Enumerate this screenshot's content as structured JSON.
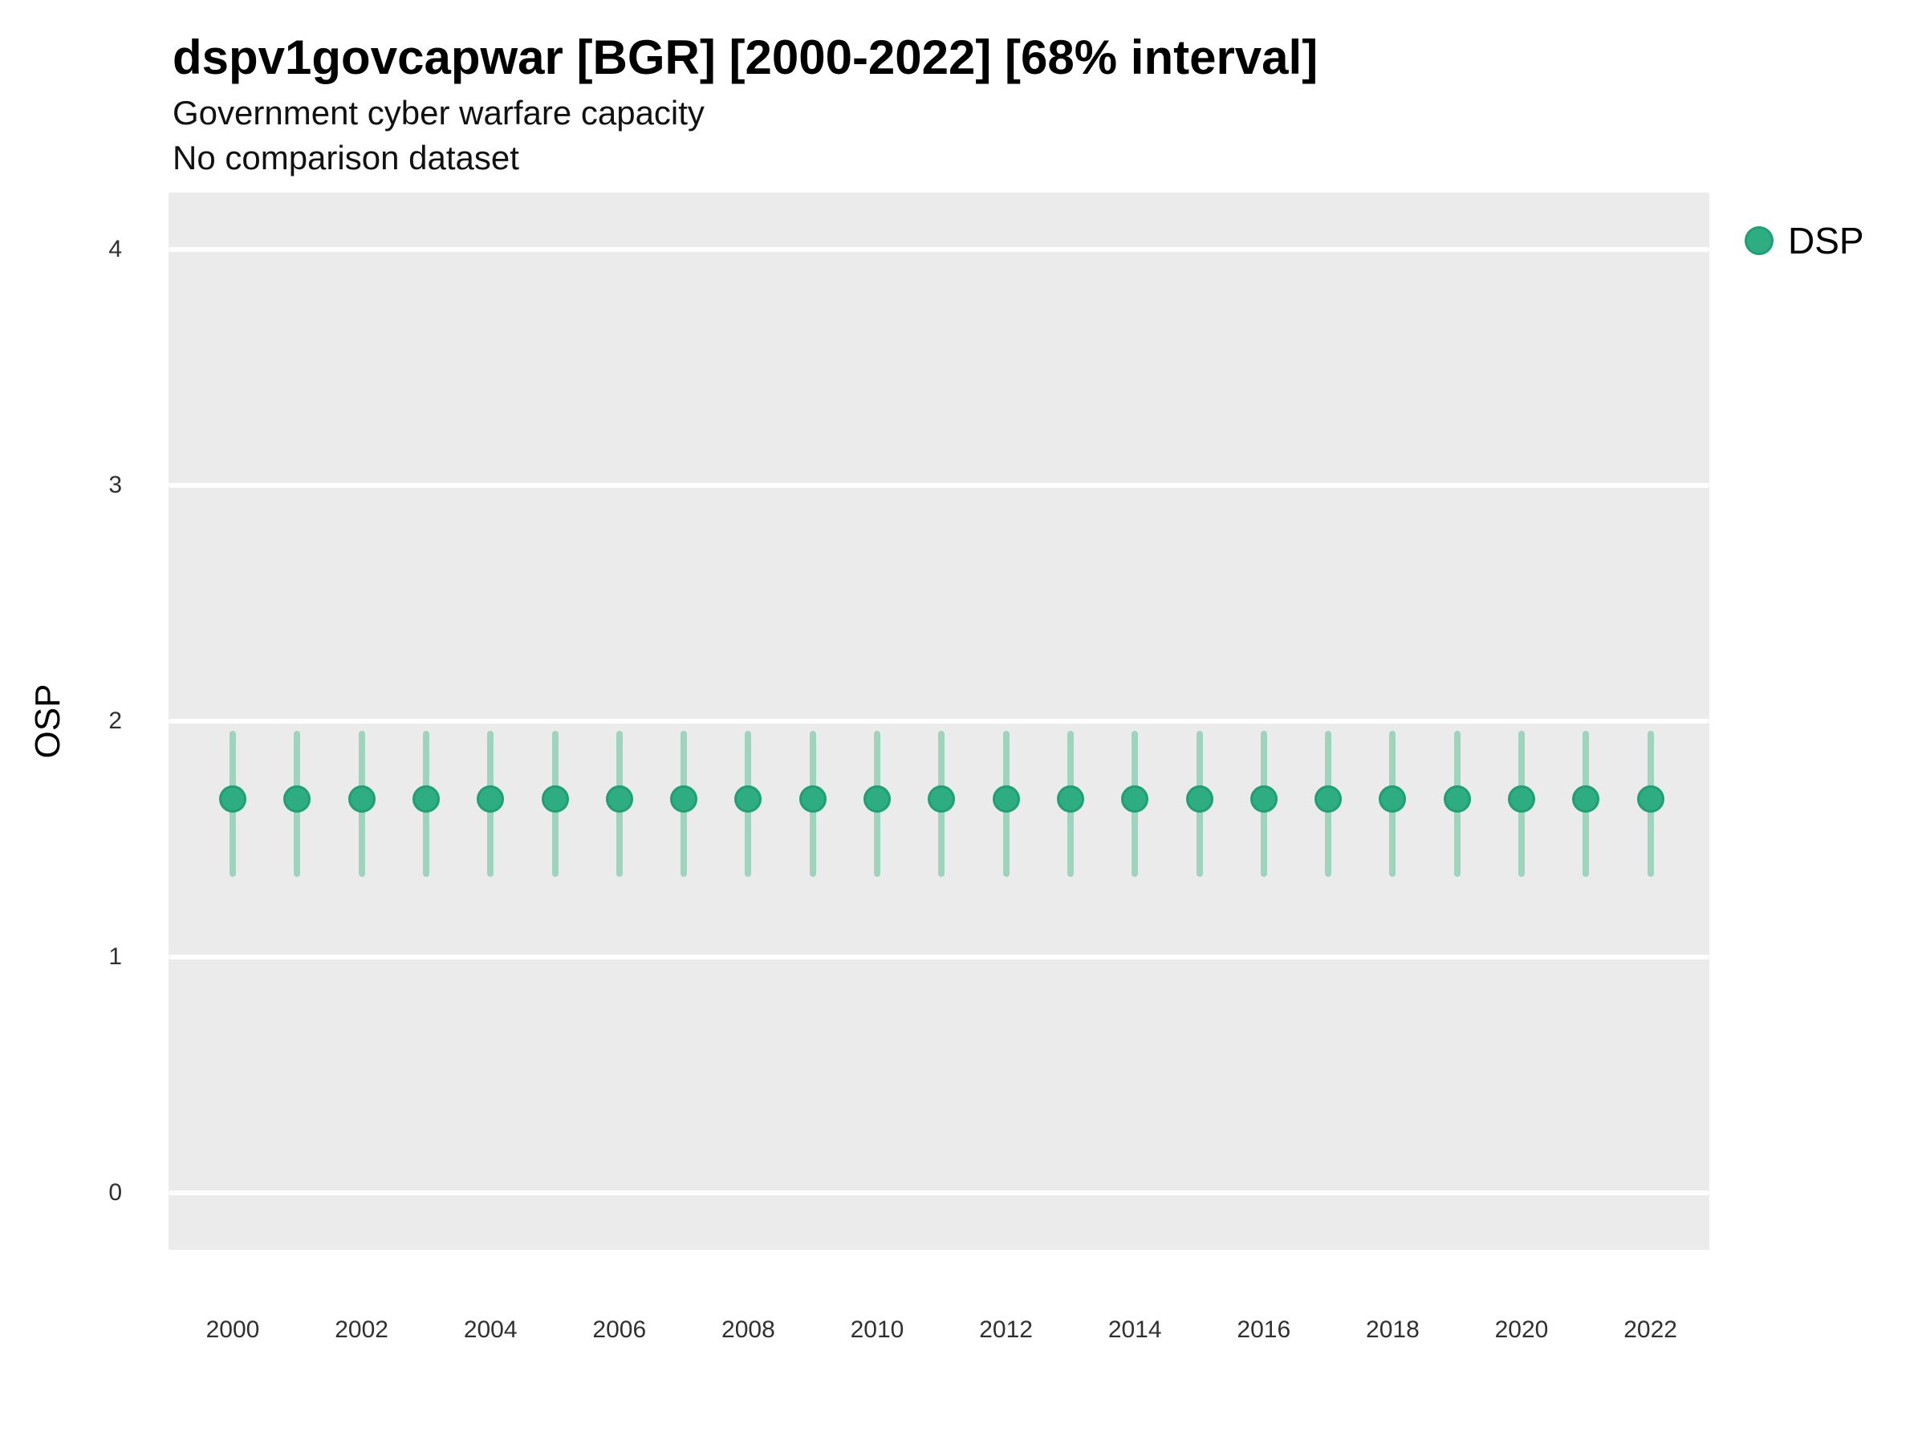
{
  "header": {
    "title": "dspv1govcapwar [BGR] [2000-2022] [68% interval]",
    "subtitle1": "Government cyber warfare capacity",
    "subtitle2": "No comparison dataset"
  },
  "legend": {
    "label": "DSP",
    "position": "right"
  },
  "colors": {
    "point_fill": "#2EAC82",
    "point_stroke": "#1FA073",
    "interval_bar": "#9CD4BE",
    "panel_background": "#EBEBEB",
    "gridline": "#FFFFFF",
    "tick_text": "#303030",
    "text": "#000000"
  },
  "chart_data": {
    "type": "pointrange",
    "title": "dspv1govcapwar [BGR] [2000-2022] [68% interval]",
    "subtitle": "Government cyber warfare capacity",
    "note": "No comparison dataset",
    "xlabel": "",
    "ylabel": "OSP",
    "ylim": [
      -0.24,
      4.24
    ],
    "yticks": [
      0,
      1,
      2,
      3,
      4
    ],
    "xticks": [
      2000,
      2002,
      2004,
      2006,
      2008,
      2010,
      2012,
      2014,
      2016,
      2018,
      2020,
      2022
    ],
    "grid": "horizontal-major-only",
    "legend_position": "right",
    "interval_level": "68%",
    "series": [
      {
        "name": "DSP",
        "points": [
          {
            "year": 2000,
            "est": 1.67,
            "lo": 1.34,
            "hi": 1.96
          },
          {
            "year": 2001,
            "est": 1.67,
            "lo": 1.34,
            "hi": 1.96
          },
          {
            "year": 2002,
            "est": 1.67,
            "lo": 1.34,
            "hi": 1.96
          },
          {
            "year": 2003,
            "est": 1.67,
            "lo": 1.34,
            "hi": 1.96
          },
          {
            "year": 2004,
            "est": 1.67,
            "lo": 1.34,
            "hi": 1.96
          },
          {
            "year": 2005,
            "est": 1.67,
            "lo": 1.34,
            "hi": 1.96
          },
          {
            "year": 2006,
            "est": 1.67,
            "lo": 1.34,
            "hi": 1.96
          },
          {
            "year": 2007,
            "est": 1.67,
            "lo": 1.34,
            "hi": 1.96
          },
          {
            "year": 2008,
            "est": 1.67,
            "lo": 1.34,
            "hi": 1.96
          },
          {
            "year": 2009,
            "est": 1.67,
            "lo": 1.34,
            "hi": 1.96
          },
          {
            "year": 2010,
            "est": 1.67,
            "lo": 1.34,
            "hi": 1.96
          },
          {
            "year": 2011,
            "est": 1.67,
            "lo": 1.34,
            "hi": 1.96
          },
          {
            "year": 2012,
            "est": 1.67,
            "lo": 1.34,
            "hi": 1.96
          },
          {
            "year": 2013,
            "est": 1.67,
            "lo": 1.34,
            "hi": 1.96
          },
          {
            "year": 2014,
            "est": 1.67,
            "lo": 1.34,
            "hi": 1.96
          },
          {
            "year": 2015,
            "est": 1.67,
            "lo": 1.34,
            "hi": 1.96
          },
          {
            "year": 2016,
            "est": 1.67,
            "lo": 1.34,
            "hi": 1.96
          },
          {
            "year": 2017,
            "est": 1.67,
            "lo": 1.34,
            "hi": 1.96
          },
          {
            "year": 2018,
            "est": 1.67,
            "lo": 1.34,
            "hi": 1.96
          },
          {
            "year": 2019,
            "est": 1.67,
            "lo": 1.34,
            "hi": 1.96
          },
          {
            "year": 2020,
            "est": 1.67,
            "lo": 1.34,
            "hi": 1.96
          },
          {
            "year": 2021,
            "est": 1.67,
            "lo": 1.34,
            "hi": 1.96
          },
          {
            "year": 2022,
            "est": 1.67,
            "lo": 1.34,
            "hi": 1.96
          }
        ]
      }
    ]
  }
}
